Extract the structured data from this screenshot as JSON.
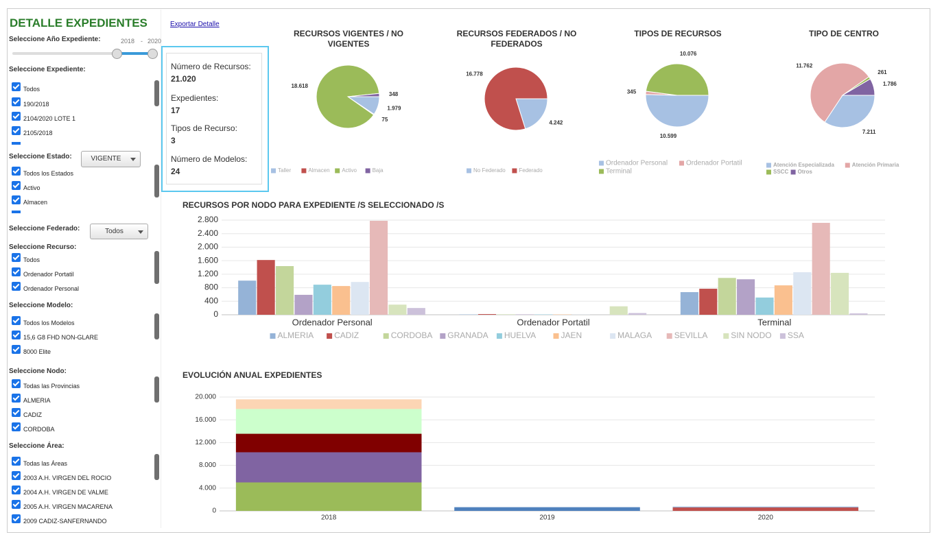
{
  "sidebar": {
    "title": "DETALLE EXPEDIENTES",
    "year": {
      "label": "Seleccione Año Expediente:",
      "min": 2018,
      "sep": "-",
      "max": 2020
    },
    "filters": [
      {
        "label": "Seleccione Expediente:",
        "options": [
          "Todos",
          "190/2018",
          "2104/2020 LOTE 1",
          "2105/2018"
        ]
      },
      {
        "label": "Seleccione Estado:",
        "dropdown": "VIGENTE",
        "options": [
          "Todos los Estados",
          "Activo",
          "Almacen"
        ]
      },
      {
        "label": "Seleccione Federado:",
        "dropdown": "Todos"
      },
      {
        "label": "Seleccione Recurso:",
        "options": [
          "Todos",
          "Ordenador Portatil",
          "Ordenador Personal"
        ]
      },
      {
        "label": "Seleccione Modelo:",
        "options": [
          "Todos los Modelos",
          "15,6 G8 FHD NON-GLARE",
          "8000 Elite"
        ]
      },
      {
        "label": "Seleccione Nodo:",
        "options": [
          "Todas las Provincias",
          "ALMERIA",
          "CADIZ",
          "CORDOBA"
        ]
      },
      {
        "label": "Seleccione Área:",
        "options": [
          "Todas las Áreas",
          "2003 A.H. VIRGEN DEL ROCIO",
          "2004 A.H. VIRGEN DE VALME",
          "2005 A.H. VIRGEN MACARENA",
          "2009 CADIZ-SANFERNANDO"
        ]
      }
    ]
  },
  "export_link": "Exportar Detalle",
  "kpis": [
    {
      "label": "Número de Recursos:",
      "value": "21.020"
    },
    {
      "label": "Expedientes:",
      "value": "17"
    },
    {
      "label": "Tipos de Recurso:",
      "value": "3"
    },
    {
      "label": "Número de Modelos:",
      "value": "24"
    }
  ],
  "chart_data": [
    {
      "type": "pie",
      "title": "RECURSOS VIGENTES / NO VIGENTES",
      "categories": [
        "Taller",
        "Almacen",
        "Activo",
        "Baja"
      ],
      "values": [
        1979,
        75,
        18618,
        348
      ],
      "value_labels": [
        "1.979",
        "75",
        "18.618",
        "348"
      ],
      "colors": [
        "#a7c1e3",
        "#c0504d",
        "#9bbb59",
        "#8064a2"
      ]
    },
    {
      "type": "pie",
      "title": "RECURSOS FEDERADOS / NO FEDERADOS",
      "categories": [
        "No Federado",
        "Federado"
      ],
      "values": [
        4242,
        16778
      ],
      "value_labels": [
        "4.242",
        "16.778"
      ],
      "colors": [
        "#a7c1e3",
        "#c0504d"
      ]
    },
    {
      "type": "pie",
      "title": "TIPOS DE RECURSOS",
      "categories": [
        "Ordenador Personal",
        "Ordenador Portatil",
        "Terminal"
      ],
      "values": [
        10599,
        345,
        10076
      ],
      "value_labels": [
        "10.599",
        "345",
        "10.076"
      ],
      "colors": [
        "#a7c1e3",
        "#e3a6a6",
        "#9bbb59"
      ]
    },
    {
      "type": "pie",
      "title": "TIPO DE CENTRO",
      "categories": [
        "Atención Especializada",
        "Atención Primaria",
        "SSCC",
        "Otros"
      ],
      "values": [
        7211,
        11762,
        261,
        1786
      ],
      "value_labels": [
        "7.211",
        "11.762",
        "261",
        "1.786"
      ],
      "colors": [
        "#a7c1e3",
        "#e3a6a6",
        "#9bbb59",
        "#8064a2"
      ]
    },
    {
      "type": "bar",
      "title": "RECURSOS POR NODO PARA EXPEDIENTE /S SELECCIONADO /S",
      "categories": [
        "Ordenador Personal",
        "Ordenador Portatil",
        "Terminal"
      ],
      "series": [
        {
          "name": "ALMERIA",
          "color": "#95b3d7",
          "values": [
            1010,
            10,
            670
          ]
        },
        {
          "name": "CADIZ",
          "color": "#c0504d",
          "values": [
            1620,
            20,
            770
          ]
        },
        {
          "name": "CORDOBA",
          "color": "#c3d69b",
          "values": [
            1440,
            10,
            1090
          ]
        },
        {
          "name": "GRANADA",
          "color": "#b3a2c7",
          "values": [
            590,
            10,
            1050
          ]
        },
        {
          "name": "HUELVA",
          "color": "#93cddd",
          "values": [
            890,
            10,
            510
          ]
        },
        {
          "name": "JAEN",
          "color": "#fac08f",
          "values": [
            850,
            10,
            870
          ]
        },
        {
          "name": "MALAGA",
          "color": "#dce6f2",
          "values": [
            970,
            5,
            1260
          ]
        },
        {
          "name": "SEVILLA",
          "color": "#e6b9b8",
          "values": [
            2780,
            0,
            2720
          ]
        },
        {
          "name": "SIN NODO",
          "color": "#d7e4bd",
          "values": [
            300,
            250,
            1240
          ]
        },
        {
          "name": "SSA",
          "color": "#ccc1da",
          "values": [
            200,
            50,
            40
          ]
        }
      ],
      "ylim": [
        0,
        2800
      ],
      "yticks": [
        0,
        400,
        800,
        {
          "value": 1200,
          "label": "1.200"
        },
        {
          "value": 1600,
          "label": "1.600"
        },
        {
          "value": 2000,
          "label": "2.000"
        },
        {
          "value": 2400,
          "label": "2.400"
        },
        {
          "value": 2800,
          "label": "2.800"
        }
      ],
      "grid": true
    },
    {
      "type": "bar",
      "stacked": true,
      "title": "EVOLUCIÓN ANUAL EXPEDIENTES",
      "categories": [
        "2018",
        "2019",
        "2020"
      ],
      "series": [
        {
          "color": "#9bbb59",
          "values": [
            5000,
            0,
            0
          ]
        },
        {
          "color": "#8064a2",
          "values": [
            5300,
            0,
            0
          ]
        },
        {
          "color": "#800000",
          "values": [
            3250,
            0,
            0
          ]
        },
        {
          "color": "#ccffcc",
          "values": [
            4350,
            0,
            0
          ]
        },
        {
          "color": "#fcd5b4",
          "values": [
            1700,
            0,
            0
          ]
        },
        {
          "color": "#4f81bd",
          "values": [
            0,
            650,
            0
          ]
        },
        {
          "color": "#c0504d",
          "values": [
            0,
            0,
            600
          ]
        },
        {
          "color": "#95b3d7",
          "values": [
            0,
            0,
            150
          ]
        }
      ],
      "ylim": [
        0,
        20000
      ],
      "yticks": [
        0,
        {
          "value": 4000,
          "label": "4.000"
        },
        {
          "value": 8000,
          "label": "8.000"
        },
        {
          "value": 12000,
          "label": "12.000"
        },
        {
          "value": 16000,
          "label": "16.000"
        },
        {
          "value": 20000,
          "label": "20.000"
        }
      ],
      "grid": true
    }
  ]
}
